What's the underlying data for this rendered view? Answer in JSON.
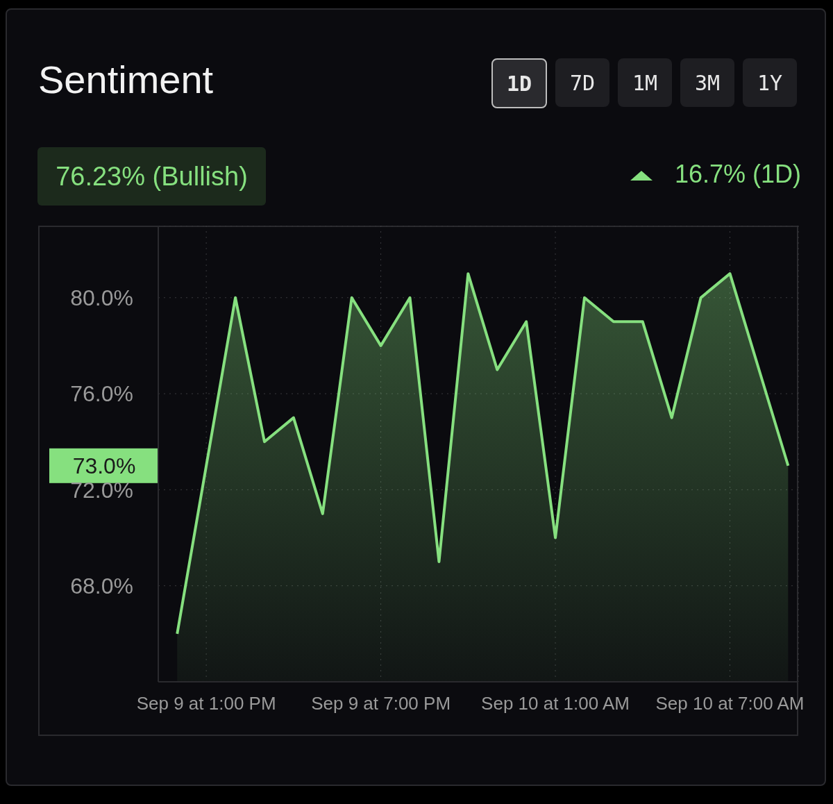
{
  "chart_data": {
    "type": "area",
    "title": "Sentiment",
    "annotations": [
      "1D",
      "7D",
      "1M",
      "3M",
      "1Y",
      "76.23% (Bullish)",
      "16.7% (1D)",
      "73.0%"
    ],
    "categories": [
      null,
      "Sep 9 at 1:00 PM",
      null,
      null,
      null,
      null,
      null,
      "Sep 9 at 7:00 PM",
      null,
      null,
      null,
      null,
      null,
      "Sep 10 at 1:00 AM",
      null,
      null,
      null,
      null,
      null,
      "Sep 10 at 7:00 AM",
      null,
      null
    ],
    "series": [
      {
        "color": "#86e07f",
        "values": [
          66,
          73,
          80,
          74,
          75,
          71,
          80,
          78,
          80,
          69,
          81,
          77,
          79,
          70,
          80,
          79,
          79,
          75,
          80,
          81,
          77,
          73
        ]
      }
    ],
    "ylim": [
      64,
      83
    ],
    "yticks": [
      {
        "value": 68,
        "label": "68.0%"
      },
      {
        "value": 72,
        "label": "72.0%"
      },
      {
        "value": 76,
        "label": "76.0%"
      },
      {
        "value": 80,
        "label": "80.0%"
      }
    ],
    "grid": true
  }
}
